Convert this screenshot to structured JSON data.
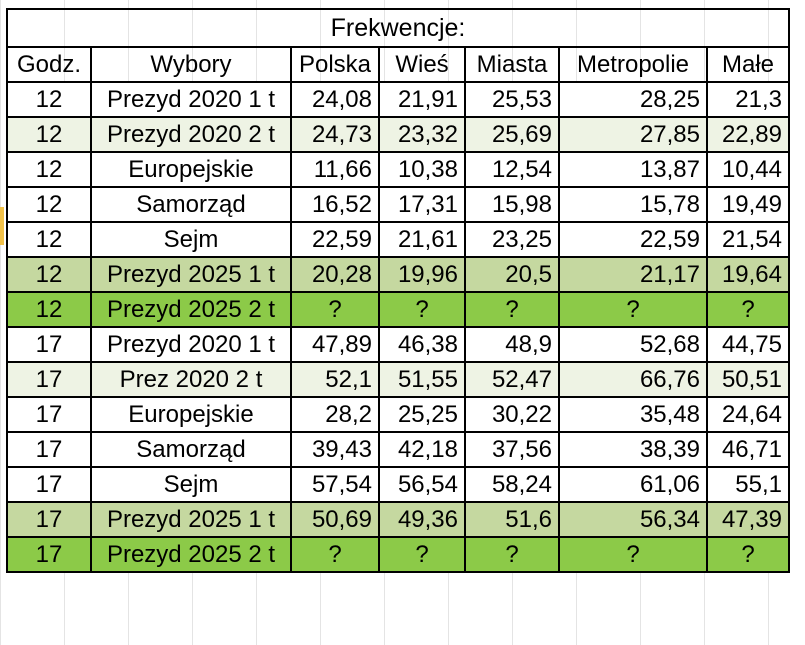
{
  "title": "Frekwencje:",
  "headers": [
    "Godz.",
    "Wybory",
    "Polska",
    "Wieś",
    "Miasta",
    "Metropolie",
    "Małe"
  ],
  "colors": {
    "white": "#ffffff",
    "light_green": "#eef3e4",
    "mid_green": "#c5d8a0",
    "bright_green": "#8cca48"
  },
  "rows": [
    {
      "cells": [
        "12",
        "Prezyd 2020 1 t",
        "24,08",
        "21,91",
        "25,53",
        "28,25",
        "21,3"
      ],
      "fill": "#ffffff"
    },
    {
      "cells": [
        "12",
        "Prezyd 2020 2 t",
        "24,73",
        "23,32",
        "25,69",
        "27,85",
        "22,89"
      ],
      "fill": "#eef3e4"
    },
    {
      "cells": [
        "12",
        "Europejskie",
        "11,66",
        "10,38",
        "12,54",
        "13,87",
        "10,44"
      ],
      "fill": "#ffffff"
    },
    {
      "cells": [
        "12",
        "Samorząd",
        "16,52",
        "17,31",
        "15,98",
        "15,78",
        "19,49"
      ],
      "fill": "#ffffff"
    },
    {
      "cells": [
        "12",
        "Sejm",
        "22,59",
        "21,61",
        "23,25",
        "22,59",
        "21,54"
      ],
      "fill": "#ffffff"
    },
    {
      "cells": [
        "12",
        "Prezyd 2025 1 t",
        "20,28",
        "19,96",
        "20,5",
        "21,17",
        "19,64"
      ],
      "fill": "#c5d8a0"
    },
    {
      "cells": [
        "12",
        "Prezyd 2025 2 t",
        "?",
        "?",
        "?",
        "?",
        "?"
      ],
      "fill": "#8cca48"
    },
    {
      "cells": [
        "17",
        "Prezyd 2020 1 t",
        "47,89",
        "46,38",
        "48,9",
        "52,68",
        "44,75"
      ],
      "fill": "#ffffff"
    },
    {
      "cells": [
        "17",
        "Prez 2020 2 t",
        "52,1",
        "51,55",
        "52,47",
        "66,76",
        "50,51"
      ],
      "fill": "#eef3e4"
    },
    {
      "cells": [
        "17",
        "Europejskie",
        "28,2",
        "25,25",
        "30,22",
        "35,48",
        "24,64"
      ],
      "fill": "#ffffff"
    },
    {
      "cells": [
        "17",
        "Samorząd",
        "39,43",
        "42,18",
        "37,56",
        "38,39",
        "46,71"
      ],
      "fill": "#ffffff"
    },
    {
      "cells": [
        "17",
        "Sejm",
        "57,54",
        "56,54",
        "58,24",
        "61,06",
        "55,1"
      ],
      "fill": "#ffffff"
    },
    {
      "cells": [
        "17",
        "Prezyd 2025 1 t",
        "50,69",
        "49,36",
        "51,6",
        "56,34",
        "47,39"
      ],
      "fill": "#c5d8a0"
    },
    {
      "cells": [
        "17",
        "Prezyd 2025 2 t",
        "?",
        "?",
        "?",
        "?",
        "?"
      ],
      "fill": "#8cca48"
    }
  ]
}
